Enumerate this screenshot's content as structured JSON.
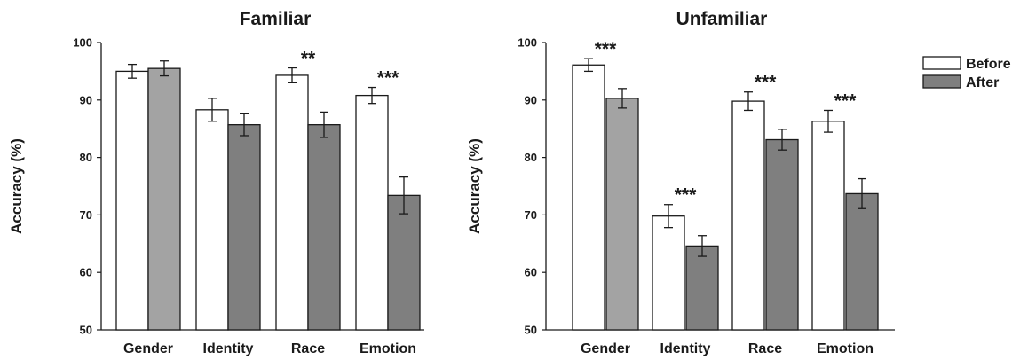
{
  "colors": {
    "before": "#ffffff",
    "after": "#7f7f7f",
    "after_light": "#a3a3a3",
    "stroke": "#1a1a1a"
  },
  "legend": {
    "items": [
      "Before",
      "After"
    ],
    "placement": "top-right"
  },
  "chart_data": [
    {
      "type": "bar",
      "title": "Familiar",
      "ylabel": "Accuracy (%)",
      "ylim": [
        50,
        100
      ],
      "yticks": [
        "50",
        "60",
        "70",
        "80",
        "90",
        "100"
      ],
      "categories": [
        "Gender",
        "Identity",
        "Race",
        "Emotion"
      ],
      "series": [
        {
          "name": "Before",
          "values": [
            95.0,
            88.3,
            94.3,
            90.8
          ],
          "errors": [
            1.2,
            2.0,
            1.3,
            1.4
          ]
        },
        {
          "name": "After",
          "values": [
            95.5,
            85.7,
            85.7,
            73.4
          ],
          "errors": [
            1.3,
            1.9,
            2.2,
            3.2
          ]
        }
      ],
      "significance": [
        "",
        "",
        "**",
        "***"
      ],
      "grid": false
    },
    {
      "type": "bar",
      "title": "Unfamiliar",
      "ylabel": "Accuracy (%)",
      "ylim": [
        50,
        100
      ],
      "yticks": [
        "50",
        "60",
        "70",
        "80",
        "90",
        "100"
      ],
      "categories": [
        "Gender",
        "Identity",
        "Race",
        "Emotion"
      ],
      "series": [
        {
          "name": "Before",
          "values": [
            96.1,
            69.8,
            89.8,
            86.3
          ],
          "errors": [
            1.1,
            2.0,
            1.6,
            1.9
          ]
        },
        {
          "name": "After",
          "values": [
            90.3,
            64.6,
            83.1,
            73.7
          ],
          "errors": [
            1.7,
            1.8,
            1.8,
            2.6
          ]
        }
      ],
      "significance": [
        "***",
        "***",
        "***",
        "***"
      ],
      "grid": false
    }
  ]
}
